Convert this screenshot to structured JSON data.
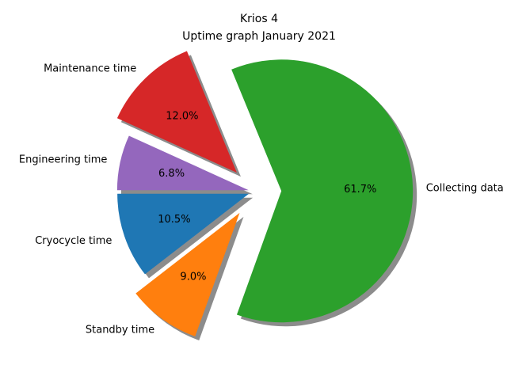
{
  "chart_data": {
    "type": "pie",
    "title_line1": "Krios 4",
    "title_line2": "Uptime graph January 2021",
    "start_angle_deg": 180,
    "direction": "counterclockwise",
    "shadow": true,
    "autopct_format": "1 decimal percent",
    "slices": [
      {
        "label": "Cryocycle time",
        "percent": 10.5,
        "pct_text": "10.5%",
        "color": "#1f77b4",
        "explode": 0.05
      },
      {
        "label": "Standby time",
        "percent": 9.0,
        "pct_text": "9.0%",
        "color": "#ff7f0e",
        "explode": 0.2
      },
      {
        "label": "Collecting data",
        "percent": 61.7,
        "pct_text": "61.7%",
        "color": "#2ca02c",
        "explode": 0.2
      },
      {
        "label": "Maintenance time",
        "percent": 12.0,
        "pct_text": "12.0%",
        "color": "#d62728",
        "explode": 0.2
      },
      {
        "label": "Engineering time",
        "percent": 6.8,
        "pct_text": "6.8%",
        "color": "#9467bd",
        "explode": 0.05
      }
    ]
  }
}
